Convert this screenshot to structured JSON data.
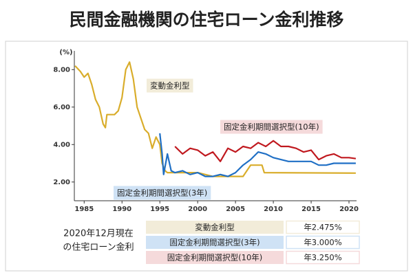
{
  "chart_data": {
    "type": "line",
    "title": "民間金融機関の住宅ローン金利推移",
    "y_unit": "(%)",
    "xlim": [
      1983.7,
      2021
    ],
    "xticks": [
      1985,
      1990,
      1995,
      2000,
      2005,
      2010,
      2015,
      2020
    ],
    "ylim": [
      1,
      9
    ],
    "yticks": [
      {
        "value": 2,
        "label": "2.00"
      },
      {
        "value": 4,
        "label": "4.00"
      },
      {
        "value": 6,
        "label": "6.00"
      },
      {
        "value": 8,
        "label": "8.00"
      }
    ],
    "series": [
      {
        "name": "変動金利型",
        "color": "#d9ad2b",
        "label_bg": "#f2ecd9",
        "x": [
          1983.8,
          1984.5,
          1985,
          1985.5,
          1986,
          1986.5,
          1987,
          1987.5,
          1987.8,
          1988,
          1989,
          1989.5,
          1990,
          1990.5,
          1991,
          1991.5,
          1992,
          1992.5,
          1993,
          1993.5,
          1994,
          1994.5,
          1995,
          1995.3,
          1995.7,
          1996,
          2000,
          2001,
          2002,
          2006,
          2006.5,
          2007,
          2008.5,
          2008.8,
          2020.9
        ],
        "values": [
          8.2,
          7.9,
          7.6,
          7.8,
          7.2,
          6.4,
          6.0,
          5.1,
          4.9,
          5.6,
          5.6,
          5.8,
          6.5,
          8.0,
          8.4,
          7.5,
          6.0,
          5.4,
          4.8,
          4.6,
          3.8,
          4.4,
          4.0,
          3.0,
          2.6,
          2.5,
          2.5,
          2.4,
          2.3,
          2.3,
          2.6,
          2.9,
          2.9,
          2.5,
          2.475
        ]
      },
      {
        "name": "固定金利期間選択型(3年)",
        "color": "#1f6fc5",
        "label_bg": "#cfe2f5",
        "x": [
          1995,
          1995.3,
          1995.5,
          1996,
          1996.5,
          1997,
          1998,
          1999,
          2000,
          2001,
          2002,
          2003,
          2004,
          2005,
          2006,
          2007,
          2008,
          2009,
          2010,
          2011,
          2012,
          2015,
          2016,
          2017,
          2018,
          2019,
          2020.9
        ],
        "values": [
          4.6,
          3.5,
          2.4,
          3.5,
          2.6,
          2.5,
          2.6,
          2.4,
          2.5,
          2.3,
          2.3,
          2.4,
          2.3,
          2.5,
          2.9,
          3.2,
          3.6,
          3.5,
          3.3,
          3.2,
          3.1,
          3.1,
          2.9,
          2.9,
          3.0,
          3.0,
          3.0
        ]
      },
      {
        "name": "固定金利期間選択型(10年)",
        "color": "#c0181e",
        "label_bg": "#f5dadb",
        "x": [
          1997,
          1998,
          1999,
          2000,
          2001,
          2002,
          2003,
          2004,
          2005,
          2006,
          2007,
          2008,
          2009,
          2010,
          2011,
          2012,
          2013,
          2014,
          2015,
          2016,
          2017,
          2018,
          2019,
          2020,
          2020.9
        ],
        "values": [
          3.9,
          3.5,
          3.8,
          3.7,
          3.4,
          3.6,
          3.1,
          3.8,
          3.6,
          3.9,
          3.8,
          4.1,
          3.9,
          4.2,
          3.9,
          3.9,
          3.8,
          3.6,
          3.7,
          3.2,
          3.4,
          3.5,
          3.3,
          3.3,
          3.25
        ]
      }
    ],
    "current_note": [
      "2020年12月現在",
      "の住宅ローン金利"
    ],
    "current_rates": [
      {
        "value": 2.475,
        "label": "年2.475%"
      },
      {
        "value": 3.0,
        "label": "年3.000%"
      },
      {
        "value": 3.25,
        "label": "年3.250%"
      }
    ]
  }
}
